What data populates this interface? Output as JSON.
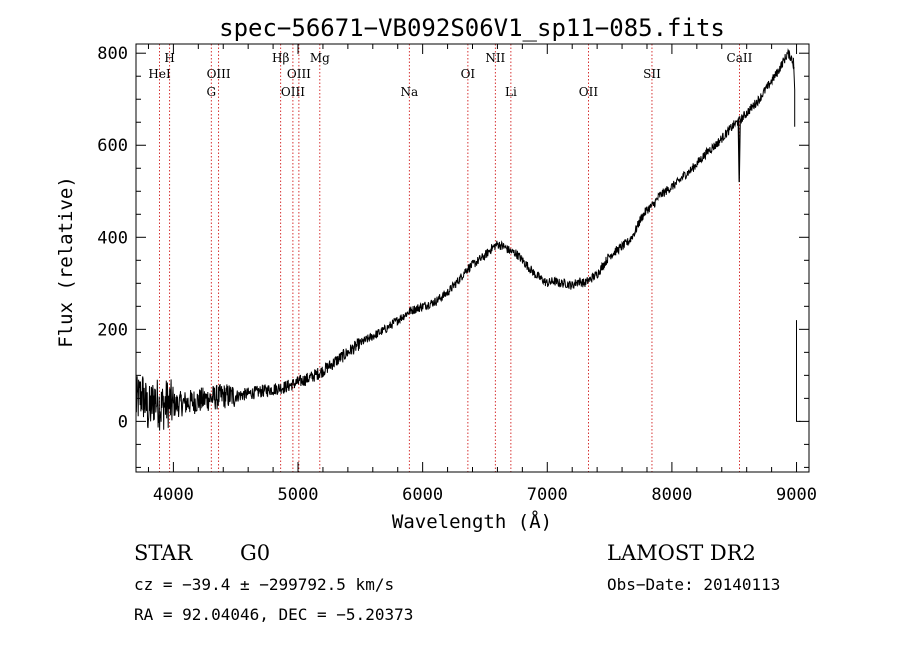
{
  "chart_data": {
    "type": "line",
    "title": "spec−56671−VB092S06V1_sp11−085.fits",
    "xlabel": "Wavelength (Å)",
    "ylabel": "Flux (relative)",
    "xlim": [
      3700,
      9100
    ],
    "ylim": [
      -110,
      820
    ],
    "x_ticks": [
      4000,
      5000,
      6000,
      7000,
      8000,
      9000
    ],
    "y_ticks": [
      0,
      200,
      400,
      600,
      800
    ],
    "series": [
      {
        "x": [
          3700,
          3750,
          3800,
          3850,
          3900,
          3950,
          4000,
          4100,
          4200,
          4300,
          4400,
          4500,
          4600,
          4700,
          4800,
          4900,
          5000,
          5100,
          5200,
          5300,
          5400,
          5500,
          5600,
          5700,
          5800,
          5900,
          6000,
          6100,
          6200,
          6300,
          6350,
          6400,
          6450,
          6500,
          6550,
          6600,
          6650,
          6700,
          6750,
          6800,
          6850,
          6900,
          6950,
          7000,
          7050,
          7100,
          7150,
          7200,
          7250,
          7300,
          7350,
          7400,
          7450,
          7500,
          7550,
          7600,
          7650,
          7700,
          7750,
          7800,
          7850,
          7900,
          7950,
          8000,
          8050,
          8100,
          8150,
          8200,
          8250,
          8300,
          8350,
          8400,
          8450,
          8500,
          8550,
          8600,
          8650,
          8700,
          8750,
          8800,
          8850,
          8900,
          8930,
          8960,
          8980
        ],
        "y": [
          40,
          60,
          20,
          50,
          30,
          40,
          35,
          40,
          45,
          50,
          55,
          55,
          60,
          65,
          70,
          75,
          85,
          95,
          110,
          130,
          150,
          170,
          185,
          200,
          220,
          240,
          250,
          260,
          280,
          310,
          330,
          340,
          350,
          360,
          375,
          385,
          380,
          370,
          365,
          350,
          335,
          320,
          310,
          300,
          305,
          300,
          300,
          295,
          305,
          300,
          310,
          320,
          340,
          360,
          370,
          380,
          390,
          410,
          440,
          460,
          470,
          490,
          500,
          510,
          520,
          535,
          545,
          560,
          575,
          590,
          600,
          615,
          630,
          645,
          655,
          670,
          685,
          700,
          720,
          740,
          760,
          785,
          800,
          790,
          770
        ]
      }
    ],
    "dip_ca": {
      "x": 8540,
      "y": 520
    }
  },
  "line_markers": [
    {
      "label": "HeI",
      "wl": 3889,
      "row": 2
    },
    {
      "label": "H",
      "wl": 3970,
      "row": 1
    },
    {
      "label": "OIII",
      "wl": 4363,
      "row": 2
    },
    {
      "label": "G",
      "wl": 4304,
      "row": 3
    },
    {
      "label": "Hβ",
      "wl": 4861,
      "row": 1
    },
    {
      "label": "OIII",
      "wl": 4959,
      "row": 3
    },
    {
      "label": "OIII",
      "wl": 5007,
      "row": 2
    },
    {
      "label": "Mg",
      "wl": 5175,
      "row": 1
    },
    {
      "label": "Na",
      "wl": 5893,
      "row": 3
    },
    {
      "label": "OI",
      "wl": 6363,
      "row": 2
    },
    {
      "label": "NII",
      "wl": 6583,
      "row": 1
    },
    {
      "label": "Li",
      "wl": 6708,
      "row": 3
    },
    {
      "label": "OII",
      "wl": 7330,
      "row": 3
    },
    {
      "label": "SII",
      "wl": 7840,
      "row": 2
    },
    {
      "label": "CaII",
      "wl": 8542,
      "row": 1
    }
  ],
  "info": {
    "class": "STAR",
    "subclass": "G0",
    "survey": "LAMOST DR2",
    "cz": "cz = −39.4 ± −299792.5 km/s",
    "obs_date": "Obs−Date: 20140113",
    "radec": "RA =  92.04046, DEC =  −5.20373"
  }
}
